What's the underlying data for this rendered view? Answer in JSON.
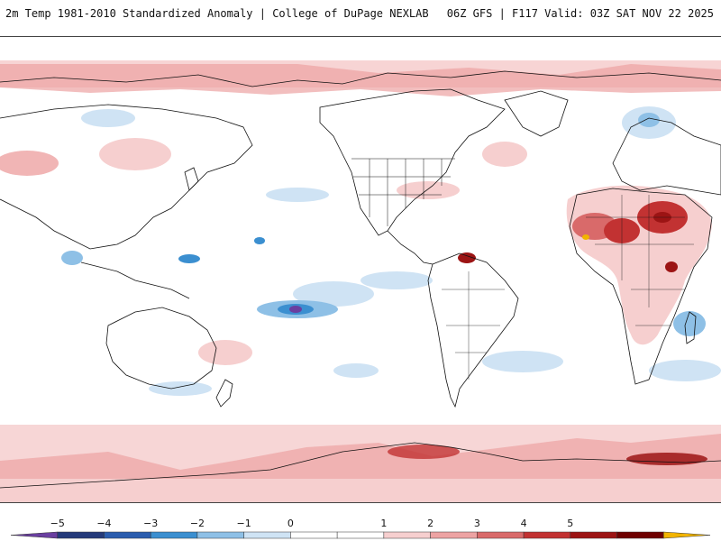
{
  "header": {
    "title_left": "2m Temp 1981-2010 Standardized Anomaly | College of DuPage NEXLAB",
    "title_right": "06Z GFS | F117 Valid: 03Z SAT NOV 22 2025"
  },
  "colorbar": {
    "labels": [
      "−5",
      "−4",
      "−3",
      "−2",
      "−1",
      "0",
      "1",
      "2",
      "3",
      "4",
      "5"
    ],
    "colors": [
      "#6a3fa0",
      "#243a7a",
      "#2a5cae",
      "#3b8fd0",
      "#8ec0e6",
      "#cfe3f4",
      "#ffffff",
      "#ffffff",
      "#f6cfcf",
      "#eda3a3",
      "#d96a6a",
      "#c23232",
      "#9c1414",
      "#6e0000",
      "#f2b400"
    ]
  },
  "map": {
    "background": "#ffffff",
    "land_outline": "#111111"
  }
}
